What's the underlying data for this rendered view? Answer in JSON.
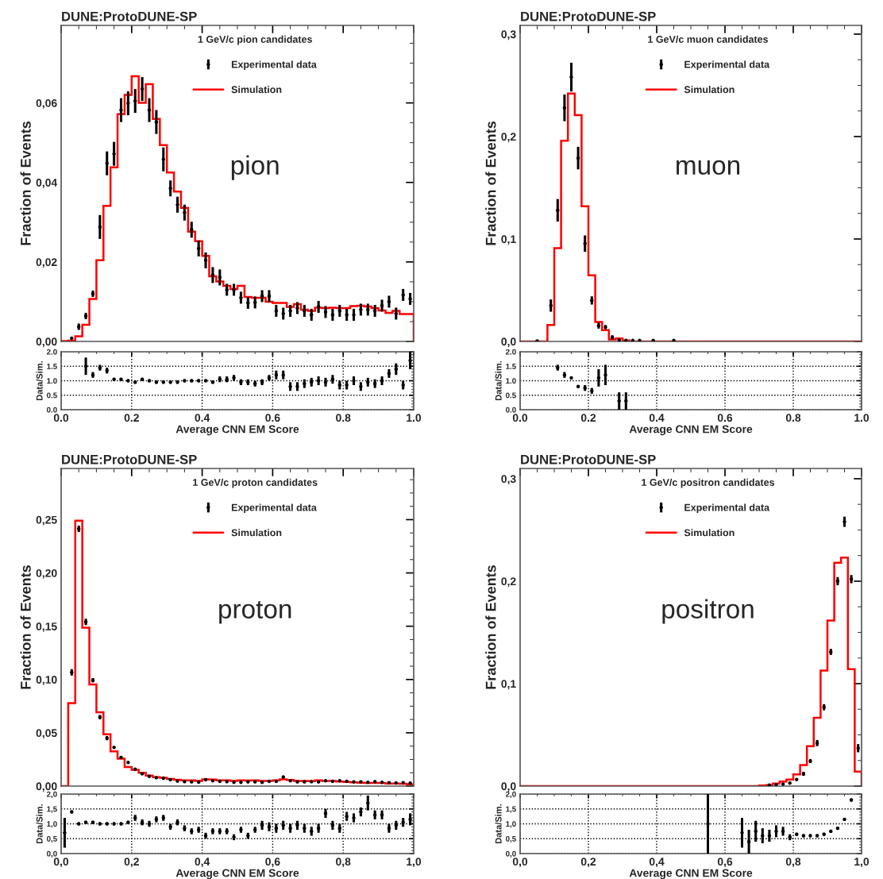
{
  "chart_data": [
    {
      "type": "histogram",
      "title": "DUNE:ProtoDUNE-SP",
      "ylabel": "Fraction of Events",
      "legend_title": "1 GeV/c pion candidates",
      "legend": "top",
      "annotations": [
        "pion"
      ],
      "tick_labels": "y",
      "xlim": [
        0,
        1
      ],
      "ylim": [
        0,
        0.0795
      ],
      "xticks": [
        {
          "value": 0,
          "label": null
        },
        {
          "value": 0.2,
          "label": null
        },
        {
          "value": 0.4,
          "label": null
        },
        {
          "value": 0.6,
          "label": null
        },
        {
          "value": 0.8,
          "label": null
        },
        {
          "value": 1,
          "label": null
        }
      ],
      "yticks": [
        {
          "value": 0,
          "label": "0,00"
        },
        {
          "value": 0.02,
          "label": "0,02"
        },
        {
          "value": 0.04,
          "label": "0,04"
        },
        {
          "value": 0.06,
          "label": "0,06"
        }
      ],
      "bins": [
        0,
        0.02,
        0.04,
        0.06,
        0.08,
        0.1,
        0.12,
        0.14,
        0.16,
        0.18,
        0.2,
        0.22,
        0.24,
        0.26,
        0.28,
        0.3,
        0.32,
        0.34,
        0.36,
        0.38,
        0.4,
        0.42,
        0.44,
        0.46,
        0.48,
        0.5,
        0.52,
        0.54,
        0.56,
        0.58,
        0.6,
        0.62,
        0.64,
        0.66,
        0.68,
        0.7,
        0.72,
        0.74,
        0.76,
        0.78,
        0.8,
        0.82,
        0.84,
        0.86,
        0.88,
        0.9,
        0.92,
        0.94,
        0.96,
        0.98,
        1.0
      ],
      "series": [
        {
          "name": "Experimental data",
          "type": "scatter",
          "marker": "circle",
          "color": "#000000",
          "x": [
            0.03,
            0.05,
            0.07,
            0.09,
            0.11,
            0.13,
            0.15,
            0.17,
            0.19,
            0.21,
            0.23,
            0.25,
            0.27,
            0.29,
            0.31,
            0.33,
            0.35,
            0.37,
            0.39,
            0.41,
            0.43,
            0.45,
            0.47,
            0.49,
            0.51,
            0.53,
            0.55,
            0.57,
            0.59,
            0.61,
            0.63,
            0.65,
            0.67,
            0.69,
            0.71,
            0.73,
            0.75,
            0.77,
            0.79,
            0.81,
            0.83,
            0.85,
            0.87,
            0.89,
            0.91,
            0.93,
            0.95,
            0.97,
            0.99
          ],
          "values": [
            0.0008,
            0.0037,
            0.0064,
            0.012,
            0.0288,
            0.0448,
            0.0472,
            0.0582,
            0.0599,
            0.0605,
            0.0635,
            0.0582,
            0.0552,
            0.0458,
            0.0385,
            0.0344,
            0.0324,
            0.0281,
            0.0234,
            0.0204,
            0.0167,
            0.0161,
            0.013,
            0.013,
            0.011,
            0.0097,
            0.0098,
            0.0114,
            0.0114,
            0.0077,
            0.007,
            0.0077,
            0.0084,
            0.0077,
            0.0067,
            0.0087,
            0.0074,
            0.0067,
            0.0077,
            0.0067,
            0.0067,
            0.008,
            0.008,
            0.0077,
            0.009,
            0.01,
            0.007,
            0.0117,
            0.0107
          ],
          "errors": [
            null,
            0.0008,
            0.0008,
            0.0008,
            0.003,
            0.003,
            0.003,
            0.003,
            0.003,
            0.003,
            0.003,
            0.003,
            0.003,
            0.003,
            0.002,
            0.002,
            0.002,
            0.002,
            0.002,
            0.002,
            0.002,
            0.002,
            0.0015,
            0.0015,
            0.0015,
            0.0015,
            0.0015,
            0.0015,
            0.0015,
            0.0015,
            0.0015,
            0.0015,
            0.0015,
            0.0015,
            0.0015,
            0.0015,
            0.0015,
            0.0015,
            0.0015,
            0.0015,
            0.0015,
            0.0015,
            0.0015,
            0.0015,
            0.0015,
            0.0015,
            0.0015,
            0.0015,
            0.0015
          ]
        },
        {
          "name": "Simulation",
          "color": "#ff0000",
          "values": [
            0.0001,
            0.0002,
            0.0013,
            0.0042,
            0.0107,
            0.0204,
            0.0341,
            0.0438,
            0.0572,
            0.062,
            0.0667,
            0.06,
            0.0647,
            0.056,
            0.0494,
            0.0425,
            0.0377,
            0.0336,
            0.0276,
            0.0252,
            0.0215,
            0.0164,
            0.0151,
            0.014,
            0.0132,
            0.014,
            0.0112,
            0.011,
            0.011,
            0.01,
            0.0097,
            0.0097,
            0.0087,
            0.0094,
            0.008,
            0.0077,
            0.0085,
            0.0084,
            0.0085,
            0.0084,
            0.0084,
            0.0089,
            0.009,
            0.0088,
            0.0084,
            0.0078,
            0.0072,
            0.0077,
            0.0069,
            0.0069
          ]
        }
      ]
    },
    {
      "type": "scatter",
      "xlabel": "Average CNN EM Score",
      "ylabel": "Data/Sim.",
      "grid": true,
      "marker": "circle",
      "color": "#000000",
      "xlim": [
        0,
        1
      ],
      "ylim": [
        0,
        2
      ],
      "xticks": [
        {
          "value": 0,
          "label": "0.0"
        },
        {
          "value": 0.2,
          "label": "0.2"
        },
        {
          "value": 0.4,
          "label": "0.4"
        },
        {
          "value": 0.6,
          "label": "0.6"
        },
        {
          "value": 0.8,
          "label": "0.8"
        },
        {
          "value": 1,
          "label": "1.0"
        }
      ],
      "yticks": [
        {
          "value": 0,
          "label": "0.0"
        },
        {
          "value": 0.5,
          "label": "0.5"
        },
        {
          "value": 1,
          "label": "1.0"
        },
        {
          "value": 1.5,
          "label": "1.5"
        },
        {
          "value": 2,
          "label": "2.0"
        }
      ],
      "x": [
        0.07,
        0.09,
        0.11,
        0.13,
        0.15,
        0.17,
        0.19,
        0.21,
        0.23,
        0.25,
        0.27,
        0.29,
        0.31,
        0.33,
        0.35,
        0.37,
        0.39,
        0.41,
        0.43,
        0.45,
        0.47,
        0.49,
        0.51,
        0.53,
        0.55,
        0.57,
        0.59,
        0.61,
        0.63,
        0.65,
        0.67,
        0.69,
        0.71,
        0.73,
        0.75,
        0.77,
        0.79,
        0.81,
        0.83,
        0.85,
        0.87,
        0.89,
        0.91,
        0.93,
        0.95,
        0.97,
        0.99
      ],
      "values": [
        1.5,
        1.2,
        1.45,
        1.35,
        1.05,
        1.05,
        1.0,
        0.95,
        1.05,
        1.0,
        0.95,
        0.95,
        0.95,
        0.95,
        1.0,
        1.0,
        1.0,
        1.0,
        0.95,
        1.05,
        1.05,
        1.1,
        0.95,
        0.95,
        0.9,
        0.95,
        1.1,
        1.2,
        1.2,
        0.8,
        0.8,
        0.9,
        0.95,
        1.0,
        0.95,
        1.05,
        0.85,
        0.85,
        1.0,
        0.8,
        0.95,
        0.9,
        1.0,
        1.25,
        1.4,
        0.85,
        1.7
      ],
      "errors": [
        0.3,
        0.1,
        0.1,
        0.1,
        0.05,
        0.05,
        0.05,
        0.05,
        0.05,
        0.05,
        0.05,
        0.05,
        0.05,
        0.05,
        0.05,
        0.05,
        0.05,
        0.05,
        0.05,
        0.1,
        0.1,
        0.1,
        0.1,
        0.1,
        0.1,
        0.1,
        0.1,
        0.15,
        0.15,
        0.15,
        0.15,
        0.15,
        0.15,
        0.15,
        0.15,
        0.15,
        0.15,
        0.15,
        0.15,
        0.15,
        0.15,
        0.15,
        0.15,
        0.15,
        0.2,
        0.15,
        0.3
      ]
    },
    {
      "type": "histogram",
      "title": "DUNE:ProtoDUNE-SP",
      "ylabel": "Fraction of Events",
      "legend_title": "1 GeV/c muon candidates",
      "legend": "top",
      "annotations": [
        "muon"
      ],
      "tick_labels": "y",
      "xlim": [
        0,
        1
      ],
      "ylim": [
        0,
        0.3085
      ],
      "xticks": [
        {
          "value": 0,
          "label": null
        },
        {
          "value": 0.2,
          "label": null
        },
        {
          "value": 0.4,
          "label": null
        },
        {
          "value": 0.6,
          "label": null
        },
        {
          "value": 0.8,
          "label": null
        },
        {
          "value": 1,
          "label": null
        }
      ],
      "yticks": [
        {
          "value": 0,
          "label": "0,0"
        },
        {
          "value": 0.1,
          "label": "0,1"
        },
        {
          "value": 0.2,
          "label": "0,2"
        },
        {
          "value": 0.3,
          "label": "0,3"
        }
      ],
      "bins": [
        0,
        0.02,
        0.04,
        0.06,
        0.08,
        0.1,
        0.12,
        0.14,
        0.16,
        0.18,
        0.2,
        0.22,
        0.24,
        0.26,
        0.28,
        0.3,
        0.32,
        0.34,
        0.36,
        0.38,
        0.4,
        0.42,
        0.44,
        0.46,
        0.48,
        0.5,
        0.52,
        0.54,
        0.56,
        0.58,
        0.6,
        0.62,
        0.64,
        0.66,
        0.68,
        0.7,
        0.72,
        0.74,
        0.76,
        0.78,
        0.8,
        0.82,
        0.84,
        0.86,
        0.88,
        0.9,
        0.92,
        0.94,
        0.96,
        0.98,
        1.0
      ],
      "series": [
        {
          "name": "Experimental data",
          "type": "scatter",
          "marker": "circle",
          "color": "#000000",
          "x": [
            0.05,
            0.09,
            0.11,
            0.13,
            0.15,
            0.17,
            0.19,
            0.21,
            0.23,
            0.25,
            0.27,
            0.29,
            0.31,
            0.33,
            0.35,
            0.39,
            0.45
          ],
          "values": [
            0.0005,
            0.035,
            0.128,
            0.228,
            0.258,
            0.179,
            0.0955,
            0.04,
            0.0155,
            0.014,
            0.004,
            0.0013,
            0.001,
            0.001,
            0.001,
            0.001,
            0.001
          ],
          "errors": [
            null,
            0.006,
            0.011,
            0.013,
            0.014,
            0.011,
            0.008,
            0.004,
            0.003,
            0.002,
            0.002,
            null,
            null,
            null,
            null,
            null,
            null
          ]
        },
        {
          "name": "Simulation",
          "color": "#ff0000",
          "values": [
            0,
            0,
            0,
            0,
            0.016,
            0.091,
            0.196,
            0.242,
            0.221,
            0.132,
            0.0645,
            0.019,
            0.011,
            0.002,
            0.003,
            0.001,
            0,
            0,
            0,
            0,
            0,
            0,
            0,
            0,
            0,
            0,
            0,
            0,
            0,
            0,
            0,
            0,
            0,
            0,
            0,
            0,
            0,
            0,
            0,
            0,
            0,
            0,
            0,
            0,
            0,
            0,
            0,
            0,
            0,
            0
          ]
        }
      ]
    },
    {
      "type": "scatter",
      "xlabel": "Average CNN EM Score",
      "ylabel": "Data/Sim.",
      "grid": true,
      "marker": "circle",
      "color": "#000000",
      "xlim": [
        0,
        1
      ],
      "ylim": [
        0,
        2
      ],
      "xticks": [
        {
          "value": 0,
          "label": "0.0"
        },
        {
          "value": 0.2,
          "label": "0.2"
        },
        {
          "value": 0.4,
          "label": "0.4"
        },
        {
          "value": 0.6,
          "label": "0.6"
        },
        {
          "value": 0.8,
          "label": "0.8"
        },
        {
          "value": 1,
          "label": "1.0"
        }
      ],
      "yticks": [
        {
          "value": 0,
          "label": "0.0"
        },
        {
          "value": 0.5,
          "label": "0.5"
        },
        {
          "value": 1,
          "label": "1.0"
        },
        {
          "value": 1.5,
          "label": "1.5"
        },
        {
          "value": 2,
          "label": "2.0"
        }
      ],
      "x": [
        0.11,
        0.13,
        0.15,
        0.17,
        0.19,
        0.21,
        0.23,
        0.25,
        0.29,
        0.31
      ],
      "values": [
        1.45,
        1.2,
        1.1,
        0.8,
        0.75,
        0.65,
        1.1,
        1.2,
        0.3,
        0.3
      ],
      "errors": [
        0.1,
        0.1,
        0.05,
        0.05,
        0.1,
        0.1,
        0.3,
        0.35,
        0.3,
        0.3
      ]
    },
    {
      "type": "histogram",
      "title": "DUNE:ProtoDUNE-SP",
      "ylabel": "Fraction of Events",
      "legend_title": "1 GeV/c proton candidates",
      "legend": "top",
      "annotations": [
        "proton"
      ],
      "tick_labels": "y",
      "xlim": [
        0,
        1
      ],
      "ylim": [
        0,
        0.298
      ],
      "xticks": [
        {
          "value": 0,
          "label": null
        },
        {
          "value": 0.2,
          "label": null
        },
        {
          "value": 0.4,
          "label": null
        },
        {
          "value": 0.6,
          "label": null
        },
        {
          "value": 0.8,
          "label": null
        },
        {
          "value": 1,
          "label": null
        }
      ],
      "yticks": [
        {
          "value": 0,
          "label": "0,00"
        },
        {
          "value": 0.05,
          "label": "0,05"
        },
        {
          "value": 0.1,
          "label": "0,10"
        },
        {
          "value": 0.15,
          "label": "0,15"
        },
        {
          "value": 0.2,
          "label": "0,20"
        },
        {
          "value": 0.25,
          "label": "0,25"
        }
      ],
      "bins": [
        0,
        0.02,
        0.04,
        0.06,
        0.08,
        0.1,
        0.12,
        0.14,
        0.16,
        0.18,
        0.2,
        0.22,
        0.24,
        0.26,
        0.28,
        0.3,
        0.32,
        0.34,
        0.36,
        0.38,
        0.4,
        0.42,
        0.44,
        0.46,
        0.48,
        0.5,
        0.52,
        0.54,
        0.56,
        0.58,
        0.6,
        0.62,
        0.64,
        0.66,
        0.68,
        0.7,
        0.72,
        0.74,
        0.76,
        0.78,
        0.8,
        0.82,
        0.84,
        0.86,
        0.88,
        0.9,
        0.92,
        0.94,
        0.96,
        0.98,
        1.0
      ],
      "series": [
        {
          "name": "Experimental data",
          "type": "scatter",
          "marker": "circle",
          "color": "#000000",
          "x": [
            0.03,
            0.05,
            0.07,
            0.09,
            0.11,
            0.13,
            0.15,
            0.17,
            0.19,
            0.21,
            0.23,
            0.25,
            0.27,
            0.29,
            0.31,
            0.33,
            0.35,
            0.37,
            0.39,
            0.41,
            0.43,
            0.45,
            0.47,
            0.49,
            0.51,
            0.53,
            0.55,
            0.57,
            0.59,
            0.61,
            0.63,
            0.65,
            0.67,
            0.69,
            0.71,
            0.73,
            0.75,
            0.77,
            0.79,
            0.81,
            0.83,
            0.85,
            0.87,
            0.89,
            0.91,
            0.93,
            0.95,
            0.97,
            0.99
          ],
          "values": [
            0.1067,
            0.2414,
            0.154,
            0.0993,
            0.0647,
            0.045,
            0.0363,
            0.0269,
            0.0222,
            0.0158,
            0.0116,
            0.0091,
            0.0079,
            0.0074,
            0.006,
            0.0047,
            0.0042,
            0.004,
            0.0037,
            0.006,
            0.005,
            0.0045,
            0.0042,
            0.0035,
            0.0035,
            0.004,
            0.004,
            0.0035,
            0.0045,
            0.0045,
            0.0085,
            0.005,
            0.004,
            0.004,
            0.0042,
            0.004,
            0.005,
            0.0045,
            0.005,
            0.0045,
            0.004,
            0.004,
            0.0035,
            0.0042,
            0.0035,
            0.0032,
            0.003,
            0.0032,
            0.0028
          ],
          "errors": [
            0.003,
            0.003,
            0.003,
            0.002,
            0.002,
            0.002,
            0.001,
            0.001,
            0.001,
            0.001,
            0.001,
            0.001,
            0.001,
            0.001,
            0.001,
            0.001,
            0.001,
            0.001,
            0.001,
            0.001,
            0.001,
            0.001,
            0.001,
            0.001,
            0.001,
            0.001,
            0.001,
            0.001,
            0.001,
            0.001,
            0.001,
            0.001,
            0.001,
            0.001,
            0.001,
            0.001,
            0.001,
            0.001,
            0.001,
            0.001,
            0.001,
            0.001,
            0.001,
            0.001,
            0.001,
            0.001,
            0.001,
            0.001,
            0.001
          ]
        },
        {
          "name": "Simulation",
          "color": "#ff0000",
          "values": [
            0,
            0.0778,
            0.249,
            0.1487,
            0.0954,
            0.0692,
            0.0487,
            0.0326,
            0.0257,
            0.0178,
            0.0153,
            0.0124,
            0.0099,
            0.0084,
            0.0079,
            0.0067,
            0.0059,
            0.0054,
            0.0054,
            0.0049,
            0.0064,
            0.0062,
            0.0054,
            0.0054,
            0.0049,
            0.0054,
            0.0052,
            0.0054,
            0.0049,
            0.0049,
            0.0054,
            0.0064,
            0.0057,
            0.0049,
            0.0049,
            0.0047,
            0.0054,
            0.0049,
            0.0049,
            0.0042,
            0.004,
            0.0035,
            0.0032,
            0.003,
            0.003,
            0.003,
            0.0025,
            0.0025,
            0.0022,
            0.0017
          ]
        }
      ]
    },
    {
      "type": "scatter",
      "xlabel": "Average CNN EM Score",
      "ylabel": "Data/Sim.",
      "grid": true,
      "marker": "circle",
      "color": "#000000",
      "xlim": [
        0,
        1
      ],
      "ylim": [
        0,
        2
      ],
      "xticks": [
        {
          "value": 0,
          "label": "0,0"
        },
        {
          "value": 0.2,
          "label": "0,2"
        },
        {
          "value": 0.4,
          "label": "0,4"
        },
        {
          "value": 0.6,
          "label": "0,6"
        },
        {
          "value": 0.8,
          "label": "0,8"
        },
        {
          "value": 1,
          "label": "1,0"
        }
      ],
      "yticks": [
        {
          "value": 0,
          "label": "0,0"
        },
        {
          "value": 0.5,
          "label": "0,5"
        },
        {
          "value": 1,
          "label": "1,0"
        },
        {
          "value": 1.5,
          "label": "1,5"
        },
        {
          "value": 2,
          "label": "2,0"
        }
      ],
      "x": [
        0.01,
        0.03,
        0.05,
        0.07,
        0.09,
        0.11,
        0.13,
        0.15,
        0.17,
        0.19,
        0.21,
        0.23,
        0.25,
        0.27,
        0.29,
        0.31,
        0.33,
        0.35,
        0.37,
        0.39,
        0.41,
        0.43,
        0.45,
        0.47,
        0.49,
        0.51,
        0.53,
        0.55,
        0.57,
        0.59,
        0.61,
        0.63,
        0.65,
        0.67,
        0.69,
        0.71,
        0.73,
        0.75,
        0.77,
        0.79,
        0.81,
        0.83,
        0.85,
        0.87,
        0.89,
        0.91,
        0.93,
        0.95,
        0.97,
        0.99
      ],
      "values": [
        0.7,
        1.4,
        1.0,
        1.05,
        1.05,
        1.0,
        1.0,
        1.0,
        1.0,
        1.05,
        1.2,
        1.05,
        1.0,
        1.15,
        1.2,
        0.9,
        1.05,
        0.85,
        0.75,
        0.8,
        0.6,
        0.75,
        0.75,
        0.75,
        0.55,
        0.8,
        0.6,
        0.8,
        0.95,
        0.9,
        0.85,
        0.95,
        0.85,
        0.95,
        0.85,
        0.75,
        0.85,
        1.35,
        0.95,
        0.85,
        1.25,
        1.2,
        1.4,
        1.7,
        1.3,
        1.3,
        0.85,
        0.95,
        1.05,
        1.15
      ],
      "errors": [
        0.5,
        0.05,
        0.05,
        0.05,
        0.05,
        0.05,
        0.05,
        0.05,
        0.05,
        0.05,
        0.1,
        0.1,
        0.1,
        0.1,
        0.1,
        0.1,
        0.1,
        0.1,
        0.1,
        0.1,
        0.1,
        0.1,
        0.1,
        0.1,
        0.1,
        0.1,
        0.1,
        0.1,
        0.15,
        0.15,
        0.15,
        0.15,
        0.15,
        0.15,
        0.15,
        0.15,
        0.15,
        0.15,
        0.15,
        0.15,
        0.15,
        0.15,
        0.15,
        0.25,
        0.15,
        0.15,
        0.15,
        0.15,
        0.15,
        0.2
      ]
    },
    {
      "type": "histogram",
      "title": "DUNE:ProtoDUNE-SP",
      "ylabel": "Fraction of Events",
      "legend_title": "1 GeV/c positron candidates",
      "legend": "top",
      "annotations": [
        "positron"
      ],
      "tick_labels": "y",
      "xlim": [
        0,
        1
      ],
      "ylim": [
        0,
        0.31
      ],
      "xticks": [
        {
          "value": 0,
          "label": null
        },
        {
          "value": 0.2,
          "label": null
        },
        {
          "value": 0.4,
          "label": null
        },
        {
          "value": 0.6,
          "label": null
        },
        {
          "value": 0.8,
          "label": null
        },
        {
          "value": 1,
          "label": null
        }
      ],
      "yticks": [
        {
          "value": 0,
          "label": "0,0"
        },
        {
          "value": 0.1,
          "label": "0,1"
        },
        {
          "value": 0.2,
          "label": "0,2"
        },
        {
          "value": 0.3,
          "label": "0,3"
        }
      ],
      "bins": [
        0,
        0.02,
        0.04,
        0.06,
        0.08,
        0.1,
        0.12,
        0.14,
        0.16,
        0.18,
        0.2,
        0.22,
        0.24,
        0.26,
        0.28,
        0.3,
        0.32,
        0.34,
        0.36,
        0.38,
        0.4,
        0.42,
        0.44,
        0.46,
        0.48,
        0.5,
        0.52,
        0.54,
        0.56,
        0.58,
        0.6,
        0.62,
        0.64,
        0.66,
        0.68,
        0.7,
        0.72,
        0.74,
        0.76,
        0.78,
        0.8,
        0.82,
        0.84,
        0.86,
        0.88,
        0.9,
        0.92,
        0.94,
        0.96,
        0.98,
        1.0
      ],
      "series": [
        {
          "name": "Experimental data",
          "type": "scatter",
          "marker": "circle",
          "color": "#000000",
          "x": [
            0.73,
            0.75,
            0.77,
            0.79,
            0.81,
            0.83,
            0.85,
            0.87,
            0.89,
            0.91,
            0.93,
            0.95,
            0.97,
            0.99
          ],
          "values": [
            0.001,
            0.0013,
            0.002,
            0.003,
            0.0064,
            0.012,
            0.0244,
            0.042,
            0.077,
            0.131,
            0.2,
            0.258,
            0.202,
            0.037
          ],
          "errors": [
            null,
            null,
            null,
            null,
            0.001,
            0.002,
            0.002,
            0.003,
            0.003,
            0.003,
            0.004,
            0.005,
            0.004,
            0.004
          ]
        },
        {
          "name": "Simulation",
          "color": "#ff0000",
          "values": [
            0,
            0,
            0,
            0,
            0,
            0,
            0,
            0,
            0,
            0,
            0,
            0,
            0,
            0,
            0,
            0,
            0,
            0,
            0,
            0,
            0,
            0,
            0,
            0,
            0,
            0,
            0,
            0,
            0,
            0,
            0,
            0,
            0,
            0,
            0,
            0.0005,
            0.001,
            0.0026,
            0.0044,
            0.0064,
            0.0115,
            0.0205,
            0.039,
            0.0667,
            0.1128,
            0.1615,
            0.218,
            0.223,
            0.1141,
            0.0141
          ]
        }
      ]
    },
    {
      "type": "scatter",
      "xlabel": "Average CNN EM Score",
      "ylabel": "Data/Sim.",
      "grid": true,
      "marker": "circle",
      "color": "#000000",
      "xlim": [
        0,
        1
      ],
      "ylim": [
        0,
        2
      ],
      "xticks": [
        {
          "value": 0,
          "label": "0,0"
        },
        {
          "value": 0.2,
          "label": "0,2"
        },
        {
          "value": 0.4,
          "label": "0,4"
        },
        {
          "value": 0.6,
          "label": "0,6"
        },
        {
          "value": 0.8,
          "label": "0,8"
        },
        {
          "value": 1,
          "label": "1,0"
        }
      ],
      "yticks": [
        {
          "value": 0,
          "label": "0,0"
        },
        {
          "value": 0.5,
          "label": "0,5"
        },
        {
          "value": 1,
          "label": "1,0"
        },
        {
          "value": 1.5,
          "label": "1,5"
        },
        {
          "value": 2,
          "label": "2,0"
        }
      ],
      "x": [
        0.55,
        0.65,
        0.67,
        0.69,
        0.71,
        0.73,
        0.75,
        0.77,
        0.79,
        0.81,
        0.83,
        0.85,
        0.87,
        0.89,
        0.91,
        0.93,
        0.95,
        0.97
      ],
      "values": [
        1.0,
        0.7,
        0.4,
        0.75,
        0.6,
        0.6,
        0.75,
        0.75,
        0.55,
        0.65,
        0.6,
        0.6,
        0.6,
        0.65,
        0.75,
        0.85,
        1.15,
        1.8
      ],
      "errors": [
        1.0,
        0.5,
        0.4,
        0.35,
        0.25,
        0.2,
        0.2,
        0.15,
        0.1,
        0.05,
        0.05,
        0.05,
        0.05,
        0.05,
        0.05,
        0.05,
        0.05,
        0.05
      ]
    }
  ]
}
